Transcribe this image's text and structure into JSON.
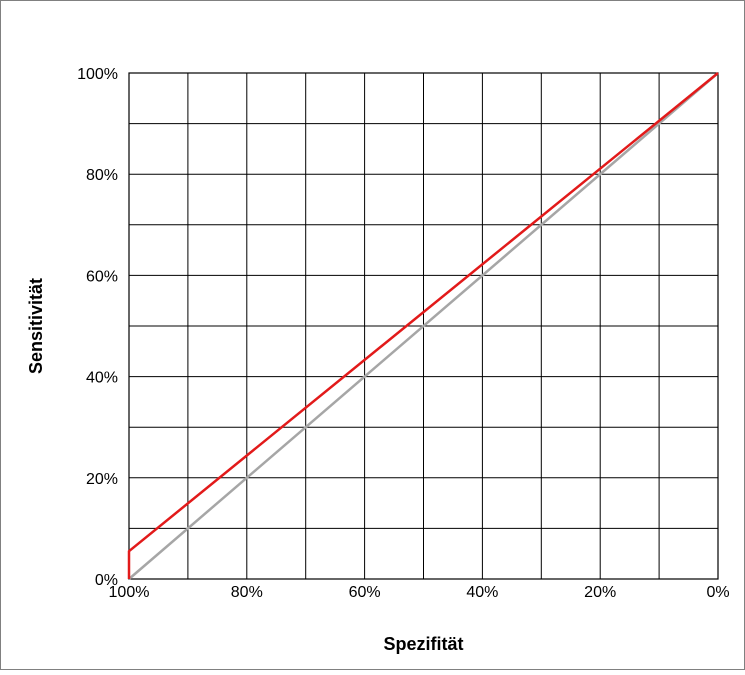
{
  "chart_data": {
    "type": "line",
    "title": "",
    "xlabel": "Spezifität",
    "ylabel": "Sensitivität",
    "x_reversed": true,
    "xlim": [
      0,
      100
    ],
    "ylim": [
      0,
      100
    ],
    "x_ticks": [
      100,
      80,
      60,
      40,
      20,
      0
    ],
    "x_tick_labels": [
      "100%",
      "80%",
      "60%",
      "40%",
      "20%",
      "0%"
    ],
    "y_ticks": [
      0,
      20,
      40,
      60,
      80,
      100
    ],
    "y_tick_labels": [
      "0%",
      "20%",
      "40%",
      "60%",
      "80%",
      "100%"
    ],
    "grid_step": 10,
    "grid": true,
    "legend": "none",
    "series": [
      {
        "color": "#e21a1a",
        "x": [
          100,
          100,
          0
        ],
        "y": [
          0,
          5.5,
          100
        ]
      },
      {
        "color": "#a6a6a6",
        "x": [
          100,
          0
        ],
        "y": [
          0,
          100
        ]
      }
    ]
  }
}
